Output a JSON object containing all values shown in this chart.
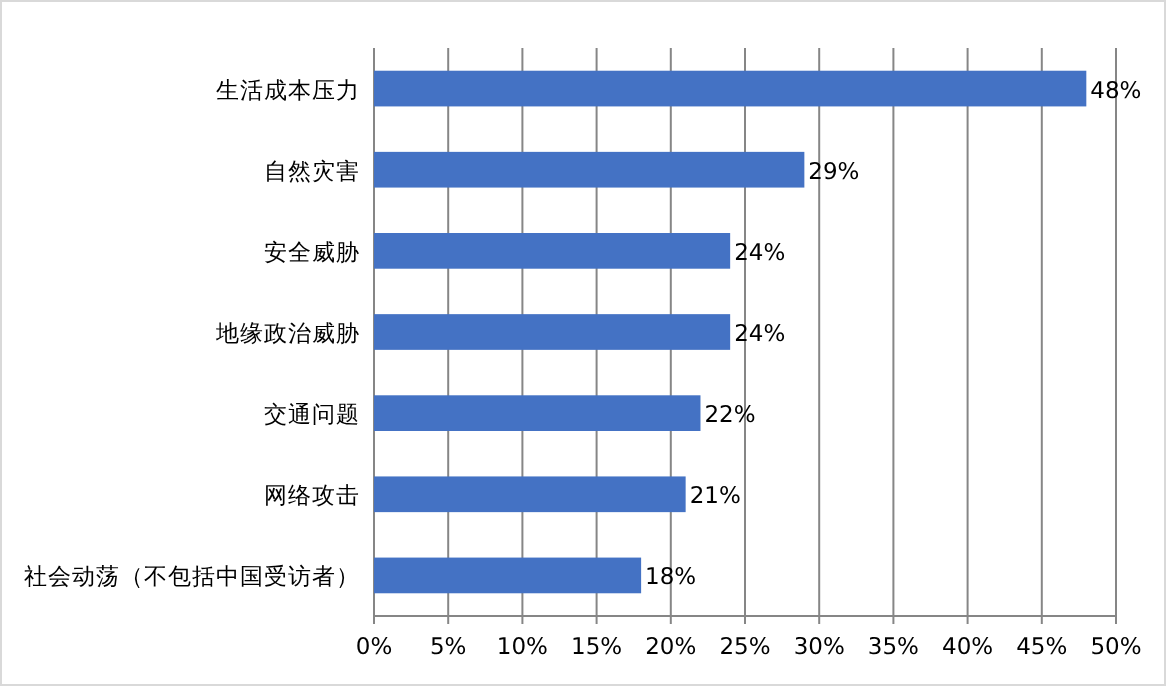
{
  "chart_data": {
    "type": "bar",
    "orientation": "horizontal",
    "categories": [
      "生活成本压力",
      "自然灾害",
      "安全威胁",
      "地缘政治威胁",
      "交通问题",
      "网络攻击",
      "社会动荡（不包括中国受访者）"
    ],
    "values": [
      48,
      29,
      24,
      24,
      22,
      21,
      18
    ],
    "value_labels": [
      "48%",
      "29%",
      "24%",
      "24%",
      "22%",
      "21%",
      "18%"
    ],
    "color": "#4472c4",
    "xlim": [
      0,
      50
    ],
    "xticks": [
      {
        "value": 0,
        "label": "0%"
      },
      {
        "value": 5,
        "label": "5%"
      },
      {
        "value": 10,
        "label": "10%"
      },
      {
        "value": 15,
        "label": "15%"
      },
      {
        "value": 20,
        "label": "20%"
      },
      {
        "value": 25,
        "label": "25%"
      },
      {
        "value": 30,
        "label": "30%"
      },
      {
        "value": 35,
        "label": "35%"
      },
      {
        "value": 40,
        "label": "40%"
      },
      {
        "value": 45,
        "label": "45%"
      },
      {
        "value": 50,
        "label": "50%"
      }
    ],
    "grid": "x"
  }
}
